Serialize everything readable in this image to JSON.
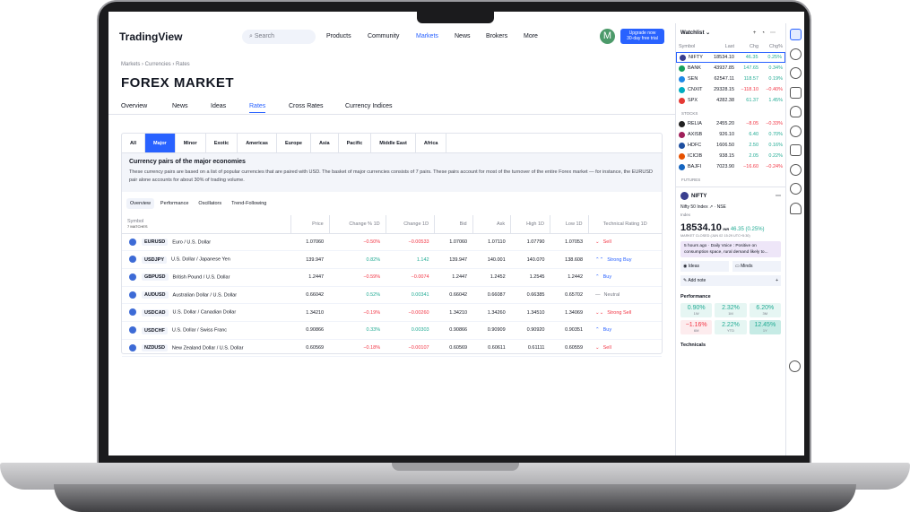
{
  "header": {
    "logo": "TradingView",
    "search_placeholder": "Search",
    "nav": [
      "Products",
      "Community",
      "Markets",
      "News",
      "Brokers",
      "More"
    ],
    "active_nav": "Markets",
    "avatar": "M",
    "upgrade_line1": "Upgrade now",
    "upgrade_line2": "30-day free trial"
  },
  "breadcrumb": "Markets › Currencies › Rates",
  "page_title": "FOREX MARKET",
  "page_tabs": [
    "Overview",
    "News",
    "Ideas",
    "Rates",
    "Cross Rates",
    "Currency Indices"
  ],
  "active_page_tab": "Rates",
  "regions": [
    "All",
    "Major",
    "Minor",
    "Exotic",
    "Americas",
    "Europe",
    "Asia",
    "Pacific",
    "Middle East",
    "Africa"
  ],
  "active_region": "Major",
  "description": {
    "title": "Currency pairs of the major economies",
    "text": "These currency pairs are based on a list of popular currencies that are paired with USD. The basket of major currencies consists of 7 pairs. These pairs account for most of the turnover of the entire Forex market — for instance, the EURUSD pair alone accounts for about 30% of trading volume."
  },
  "sub_tabs": [
    "Overview",
    "Performance",
    "Oscillators",
    "Trend-Following"
  ],
  "table": {
    "columns": [
      "Symbol",
      "Price",
      "Change % 1D",
      "Change 1D",
      "Bid",
      "Ask",
      "High 1D",
      "Low 1D",
      "Technical Rating 1D"
    ],
    "matches": "7 MATCHES",
    "rows": [
      {
        "ticker": "EURUSD",
        "name": "Euro / U.S. Dollar",
        "price": "1.07060",
        "chg_pct": "−0.50%",
        "chg": "−0.00533",
        "bid": "1.07060",
        "ask": "1.07110",
        "high": "1.07790",
        "low": "1.07053",
        "rating": "Sell",
        "dir": "neg",
        "icon": "⌄"
      },
      {
        "ticker": "USDJPY",
        "name": "U.S. Dollar / Japanese Yen",
        "price": "139.947",
        "chg_pct": "0.82%",
        "chg": "1.142",
        "bid": "139.947",
        "ask": "140.001",
        "high": "140.070",
        "low": "138.608",
        "rating": "Strong Buy",
        "dir": "pos",
        "icon": "⌃⌃"
      },
      {
        "ticker": "GBPUSD",
        "name": "British Pound / U.S. Dollar",
        "price": "1.2447",
        "chg_pct": "−0.59%",
        "chg": "−0.0074",
        "bid": "1.2447",
        "ask": "1.2452",
        "high": "1.2545",
        "low": "1.2442",
        "rating": "Buy",
        "dir": "neg",
        "icon": "⌃"
      },
      {
        "ticker": "AUDUSD",
        "name": "Australian Dollar / U.S. Dollar",
        "price": "0.66042",
        "chg_pct": "0.52%",
        "chg": "0.00341",
        "bid": "0.66042",
        "ask": "0.66087",
        "high": "0.66385",
        "low": "0.65702",
        "rating": "Neutral",
        "dir": "pos",
        "icon": "—"
      },
      {
        "ticker": "USDCAD",
        "name": "U.S. Dollar / Canadian Dollar",
        "price": "1.34210",
        "chg_pct": "−0.19%",
        "chg": "−0.00260",
        "bid": "1.34210",
        "ask": "1.34260",
        "high": "1.34510",
        "low": "1.34069",
        "rating": "Strong Sell",
        "dir": "neg",
        "icon": "⌄⌄"
      },
      {
        "ticker": "USDCHF",
        "name": "U.S. Dollar / Swiss Franc",
        "price": "0.90866",
        "chg_pct": "0.33%",
        "chg": "0.00303",
        "bid": "0.90866",
        "ask": "0.90909",
        "high": "0.90920",
        "low": "0.90351",
        "rating": "Buy",
        "dir": "pos",
        "icon": "⌃"
      },
      {
        "ticker": "NZDUSD",
        "name": "New Zealand Dollar / U.S. Dollar",
        "price": "0.60569",
        "chg_pct": "−0.18%",
        "chg": "−0.00107",
        "bid": "0.60569",
        "ask": "0.60611",
        "high": "0.61111",
        "low": "0.60559",
        "rating": "Sell",
        "dir": "neg",
        "icon": "⌄"
      }
    ]
  },
  "watchlist": {
    "title": "Watchlist ⌄",
    "columns": [
      "Symbol",
      "Last",
      "Chg",
      "Chg%"
    ],
    "indices": [
      {
        "sym": "NIFTY",
        "last": "18534.10",
        "chg": "46.35",
        "pct": "0.25%",
        "dir": "pos",
        "color": "#3a3f8f"
      },
      {
        "sym": "BANK",
        "last": "43937.85",
        "chg": "147.65",
        "pct": "0.34%",
        "dir": "pos",
        "color": "#16a05d"
      },
      {
        "sym": "SEN",
        "last": "62547.11",
        "chg": "118.57",
        "pct": "0.19%",
        "dir": "pos",
        "color": "#1e88e5"
      },
      {
        "sym": "CNXIT",
        "last": "29328.15",
        "chg": "−118.10",
        "pct": "−0.40%",
        "dir": "neg",
        "color": "#00acc1"
      },
      {
        "sym": "SPX",
        "last": "4282.38",
        "chg": "61.37",
        "pct": "1.45%",
        "dir": "pos",
        "color": "#e53935"
      }
    ],
    "stocks_label": "STOCKS",
    "stocks": [
      {
        "sym": "RELIA",
        "last": "2455.20",
        "chg": "−8.05",
        "pct": "−0.33%",
        "dir": "neg",
        "color": "#222"
      },
      {
        "sym": "AXISB",
        "last": "926.10",
        "chg": "6.40",
        "pct": "0.70%",
        "dir": "pos",
        "color": "#a0205a"
      },
      {
        "sym": "HDFC",
        "last": "1606.50",
        "chg": "2.50",
        "pct": "0.16%",
        "dir": "pos",
        "color": "#1d4fa0"
      },
      {
        "sym": "ICICIB",
        "last": "938.15",
        "chg": "2.05",
        "pct": "0.22%",
        "dir": "pos",
        "color": "#e65100"
      },
      {
        "sym": "BAJFI",
        "last": "7023.90",
        "chg": "−16.60",
        "pct": "−0.24%",
        "dir": "neg",
        "color": "#1565c0"
      }
    ],
    "futures_label": "FUTURES"
  },
  "detail": {
    "symbol": "NIFTY",
    "name": "Nifty 50 Index",
    "exchange": "NSE",
    "type": "Index",
    "price": "18534.10",
    "currency": "INR",
    "change": "46.35 (0.25%)",
    "status": "MARKET CLOSED  (JUN 02 15:29 UTC+5:30)",
    "news": "5 hours ago · Daily Voice : Positive on consumption space, rural demand likely to...",
    "ideas": "Ideas",
    "minds": "Minds",
    "add_note": "Add note",
    "performance_label": "Performance",
    "performance": [
      {
        "v": "0.90%",
        "p": "1W",
        "dir": "pos"
      },
      {
        "v": "2.32%",
        "p": "1M",
        "dir": "pos"
      },
      {
        "v": "6.20%",
        "p": "3M",
        "dir": "pos"
      },
      {
        "v": "−1.16%",
        "p": "6M",
        "dir": "neg"
      },
      {
        "v": "2.22%",
        "p": "YTD",
        "dir": "pos"
      },
      {
        "v": "12.45%",
        "p": "1Y",
        "dir": "pos"
      }
    ],
    "technicals_label": "Technicals"
  },
  "colors": {
    "accent": "#2962ff",
    "positive": "#22ab94",
    "negative": "#f23645"
  }
}
